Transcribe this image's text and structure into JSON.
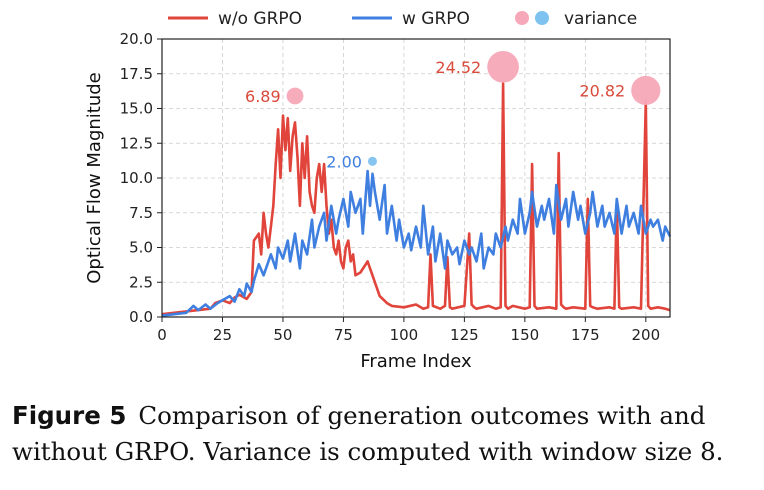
{
  "chart_data": {
    "type": "line",
    "xlabel": "Frame Index",
    "ylabel": "Optical Flow Magnitude",
    "xlim": [
      0,
      210
    ],
    "ylim": [
      0,
      20
    ],
    "xticks": [
      0,
      25,
      50,
      75,
      100,
      125,
      150,
      175,
      200
    ],
    "yticks": [
      0.0,
      2.5,
      5.0,
      7.5,
      10.0,
      12.5,
      15.0,
      17.5,
      20.0
    ],
    "grid": true,
    "legend": [
      {
        "label": "w/o GRPO",
        "kind": "line",
        "color": "#e0443a"
      },
      {
        "label": "w GRPO",
        "kind": "line",
        "color": "#3f7fe0"
      },
      {
        "label": "variance",
        "kind": "dots",
        "colors": [
          "#f7a8b8",
          "#7ec2ef"
        ]
      }
    ],
    "series": [
      {
        "name": "w/o GRPO",
        "color": "#e0443a",
        "x": [
          0,
          5,
          10,
          15,
          20,
          22,
          25,
          28,
          30,
          32,
          35,
          37,
          38,
          40,
          41,
          42,
          43,
          44,
          45,
          46,
          47,
          48,
          49,
          50,
          51,
          52,
          53,
          54,
          55,
          56,
          57,
          58,
          59,
          60,
          61,
          62,
          63,
          64,
          65,
          66,
          67,
          68,
          69,
          70,
          71,
          72,
          73,
          74,
          75,
          76,
          77,
          78,
          79,
          80,
          82,
          85,
          88,
          90,
          93,
          95,
          100,
          105,
          108,
          110,
          111,
          112,
          115,
          117,
          118,
          119,
          120,
          125,
          127,
          128,
          129,
          130,
          135,
          138,
          140,
          141,
          142,
          143,
          145,
          150,
          152,
          153,
          154,
          155,
          160,
          163,
          164,
          165,
          166,
          167,
          170,
          175,
          176,
          177,
          178,
          180,
          185,
          187,
          188,
          189,
          190,
          195,
          198,
          200,
          201,
          202,
          205,
          208,
          210
        ],
        "values": [
          0.2,
          0.3,
          0.4,
          0.5,
          0.6,
          1.0,
          1.2,
          1.0,
          1.4,
          1.6,
          1.3,
          1.8,
          5.5,
          6.0,
          4.5,
          7.5,
          6.0,
          5.0,
          6.5,
          8.0,
          11.0,
          13.5,
          10.0,
          14.5,
          12.0,
          14.3,
          10.5,
          13.0,
          14.0,
          11.5,
          8.0,
          12.5,
          10.0,
          13.0,
          9.0,
          8.0,
          7.5,
          10.0,
          11.0,
          9.0,
          11.0,
          8.0,
          6.0,
          7.0,
          5.0,
          4.5,
          5.5,
          4.0,
          3.5,
          5.0,
          5.5,
          4.0,
          4.5,
          3.0,
          3.2,
          4.0,
          2.5,
          1.5,
          1.0,
          0.8,
          0.7,
          0.9,
          0.6,
          0.7,
          4.5,
          0.8,
          0.6,
          0.8,
          4.3,
          0.7,
          0.6,
          0.8,
          6.0,
          0.9,
          0.7,
          0.6,
          0.8,
          0.6,
          0.7,
          16.8,
          0.8,
          0.6,
          0.8,
          0.6,
          0.7,
          11.0,
          0.8,
          0.6,
          0.7,
          0.6,
          11.8,
          0.9,
          0.7,
          0.6,
          0.7,
          0.6,
          8.5,
          0.8,
          0.7,
          0.6,
          0.7,
          0.6,
          8.3,
          0.7,
          0.6,
          0.7,
          0.6,
          15.5,
          0.8,
          0.6,
          0.7,
          0.6,
          0.5
        ]
      },
      {
        "name": "w GRPO",
        "color": "#3f7fe0",
        "x": [
          0,
          5,
          10,
          13,
          15,
          18,
          20,
          23,
          25,
          28,
          30,
          32,
          34,
          35,
          37,
          38,
          40,
          42,
          45,
          47,
          48,
          50,
          52,
          53,
          55,
          57,
          58,
          60,
          62,
          63,
          65,
          67,
          68,
          70,
          72,
          73,
          75,
          77,
          78,
          80,
          82,
          83,
          85,
          86,
          87,
          88,
          90,
          92,
          93,
          95,
          97,
          98,
          100,
          102,
          103,
          105,
          107,
          108,
          110,
          112,
          113,
          115,
          117,
          118,
          120,
          122,
          123,
          125,
          127,
          128,
          130,
          132,
          133,
          135,
          137,
          138,
          140,
          142,
          143,
          145,
          147,
          148,
          150,
          152,
          153,
          155,
          157,
          158,
          160,
          162,
          163,
          165,
          167,
          168,
          170,
          172,
          173,
          175,
          177,
          178,
          180,
          182,
          183,
          185,
          187,
          188,
          190,
          192,
          193,
          195,
          197,
          198,
          200,
          202,
          203,
          205,
          207,
          208,
          210
        ],
        "values": [
          0.1,
          0.2,
          0.3,
          0.8,
          0.5,
          0.9,
          0.6,
          1.0,
          1.2,
          1.5,
          1.1,
          2.0,
          1.5,
          2.4,
          1.8,
          2.6,
          3.8,
          3.0,
          4.5,
          3.5,
          5.0,
          4.2,
          5.5,
          4.0,
          6.0,
          3.5,
          5.5,
          4.5,
          7.0,
          5.0,
          6.5,
          7.5,
          5.5,
          8.0,
          6.0,
          7.0,
          8.5,
          6.5,
          9.0,
          7.5,
          8.5,
          6.0,
          10.5,
          8.0,
          10.3,
          9.0,
          7.0,
          9.5,
          6.0,
          8.0,
          5.5,
          7.0,
          5.0,
          6.0,
          4.8,
          6.5,
          5.0,
          8.0,
          4.5,
          6.5,
          4.0,
          6.0,
          3.5,
          5.5,
          4.5,
          5.0,
          3.8,
          5.5,
          4.5,
          5.0,
          4.0,
          6.0,
          3.5,
          5.0,
          4.5,
          6.0,
          5.0,
          6.5,
          5.5,
          7.0,
          6.0,
          8.5,
          6.0,
          7.5,
          9.0,
          6.5,
          8.0,
          7.0,
          8.5,
          6.0,
          9.5,
          7.0,
          8.5,
          6.5,
          9.0,
          7.0,
          8.0,
          6.0,
          7.5,
          9.0,
          6.5,
          8.0,
          6.5,
          7.5,
          6.0,
          8.5,
          6.0,
          8.0,
          6.5,
          7.5,
          6.0,
          8.0,
          6.0,
          7.0,
          6.5,
          7.0,
          5.5,
          6.5,
          5.8
        ]
      }
    ],
    "annotations": [
      {
        "label": "6.89",
        "x": 55,
        "y": 15.9,
        "variance": 6.89,
        "color": "#f7a8b8",
        "text_color": "#d94a3a"
      },
      {
        "label": "2.00",
        "x": 87,
        "y": 11.2,
        "variance": 2.0,
        "color": "#7ec2ef",
        "text_color": "#3f7fe0"
      },
      {
        "label": "24.52",
        "x": 141,
        "y": 18.0,
        "variance": 24.52,
        "color": "#f7a8b8",
        "text_color": "#d94a3a"
      },
      {
        "label": "20.82",
        "x": 200,
        "y": 16.3,
        "variance": 20.82,
        "color": "#f7a8b8",
        "text_color": "#d94a3a"
      }
    ]
  },
  "caption": {
    "figure_label": "Figure 5",
    "text": "Comparison of generation outcomes with and without GRPO. Variance is computed with window size 8."
  }
}
